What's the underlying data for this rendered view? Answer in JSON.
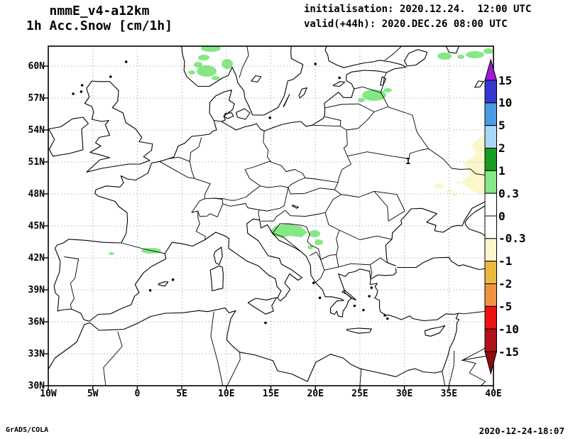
{
  "header": {
    "model": "nmmE_v4-a12km",
    "variable": "1h Acc.Snow [cm/1h]",
    "init_label": "initialisation: 2020.12.24.  12:00 UTC",
    "valid_label": "valid(+44h): 2020.DEC.26 08:00 UTC"
  },
  "axes": {
    "lat_labels": [
      "60N",
      "57N",
      "54N",
      "51N",
      "48N",
      "45N",
      "42N",
      "39N",
      "36N",
      "33N",
      "30N"
    ],
    "lon_labels": [
      "10W",
      "5W",
      "0",
      "5E",
      "10E",
      "15E",
      "20E",
      "25E",
      "30E",
      "35E",
      "40E"
    ]
  },
  "colorbar": {
    "tick_labels": [
      "15",
      "10",
      "5",
      "2",
      "1",
      "0.3",
      "0",
      "-0.3",
      "-1",
      "-2",
      "-5",
      "-10",
      "-15"
    ],
    "segments": [
      {
        "range": "> 15",
        "color": "#a11ad8"
      },
      {
        "range": "10 to 15",
        "color": "#3538cf"
      },
      {
        "range": "5 to 10",
        "color": "#4a9ce4"
      },
      {
        "range": "2 to 5",
        "color": "#aad7f5"
      },
      {
        "range": "1 to 2",
        "color": "#169c1f"
      },
      {
        "range": "0.3 to 1",
        "color": "#85e885"
      },
      {
        "range": "0 to 0.3",
        "color": "#ffffff"
      },
      {
        "range": "-0.3 to 0",
        "color": "#ffffff"
      },
      {
        "range": "-1 to -0.3",
        "color": "#fbf7cb"
      },
      {
        "range": "-2 to -1",
        "color": "#e9b93f"
      },
      {
        "range": "-5 to -2",
        "color": "#f29340"
      },
      {
        "range": "-10 to -5",
        "color": "#ec1113"
      },
      {
        "range": "-15 to -10",
        "color": "#b11116"
      },
      {
        "range": "< -15",
        "color": "#8e0e10"
      }
    ]
  },
  "map": {
    "contour_label": "1",
    "shading_positive_color": "#85e885",
    "shading_negative_color": "#fbf7cb",
    "coast_color": "#000000",
    "grid_color": "#a0a0a0"
  },
  "footer": {
    "left": "GrADS/COLA",
    "right": "2020-12-24-18:07"
  },
  "chart_data": {
    "type": "heatmap",
    "title": "nmmE_v4-a12km",
    "subtitle": "1h Acc.Snow [cm/1h]",
    "units": "cm/1h",
    "initialisation": "2020.12.24. 12:00 UTC",
    "valid": "2020.DEC.26 08:00 UTC (+44h)",
    "x": {
      "label": "longitude",
      "range": [
        -10,
        40
      ],
      "ticks": [
        "10W",
        "5W",
        "0",
        "5E",
        "10E",
        "15E",
        "20E",
        "25E",
        "30E",
        "35E",
        "40E"
      ]
    },
    "y": {
      "label": "latitude",
      "range": [
        30,
        61.9
      ],
      "ticks": [
        "30N",
        "33N",
        "36N",
        "39N",
        "42N",
        "45N",
        "48N",
        "51N",
        "54N",
        "57N",
        "60N"
      ]
    },
    "levels": [
      -15,
      -10,
      -5,
      -2,
      -1,
      -0.3,
      0,
      0.3,
      1,
      2,
      5,
      10,
      15
    ],
    "palette_top_to_bottom": [
      "#a11ad8",
      "#3538cf",
      "#4a9ce4",
      "#aad7f5",
      "#169c1f",
      "#85e885",
      "#ffffff",
      "#ffffff",
      "#fbf7cb",
      "#e9b93f",
      "#f29340",
      "#ec1113",
      "#b11116",
      "#8e0e10"
    ],
    "grid": "dotted graticule, 5 deg lon x 3 deg lat",
    "legend_position": "right",
    "shaded_regions": [
      {
        "value_bin": "0.3 to 1",
        "color": "#85e885",
        "location": "southern Norway mountains (~5.5-10.5E, 58.5-61.8N)"
      },
      {
        "value_bin": "0.3 to 1",
        "color": "#85e885",
        "location": "Dinaric Alps, Croatia/Bosnia (~15-20.5E, 43-45.2N)"
      },
      {
        "value_bin": "0.3 to 1",
        "color": "#85e885",
        "location": "Pyrenees (~0.5-2.8E, 42.3-42.9N)"
      },
      {
        "value_bin": "0.3 to 1",
        "color": "#85e885",
        "location": "Estonia/Latvia border area (~25-28.5E, 57.3-58.8N)"
      },
      {
        "value_bin": "0.3 to 1",
        "color": "#85e885",
        "location": "northwest Russia (~34-39.5E, 60.8-61.7N)"
      },
      {
        "value_bin": "-1 to -0.3",
        "color": "#fbf7cb",
        "location": "western Russia along 36-40E, 47.7-53.6N"
      },
      {
        "value_bin": "-1 to -0.3",
        "color": "#fbf7cb",
        "location": "small patches near 33-36E, 47.8-49.3N"
      }
    ],
    "contour_labels": [
      {
        "value": "1",
        "lon": 30.4,
        "lat": 51.0
      }
    ]
  }
}
